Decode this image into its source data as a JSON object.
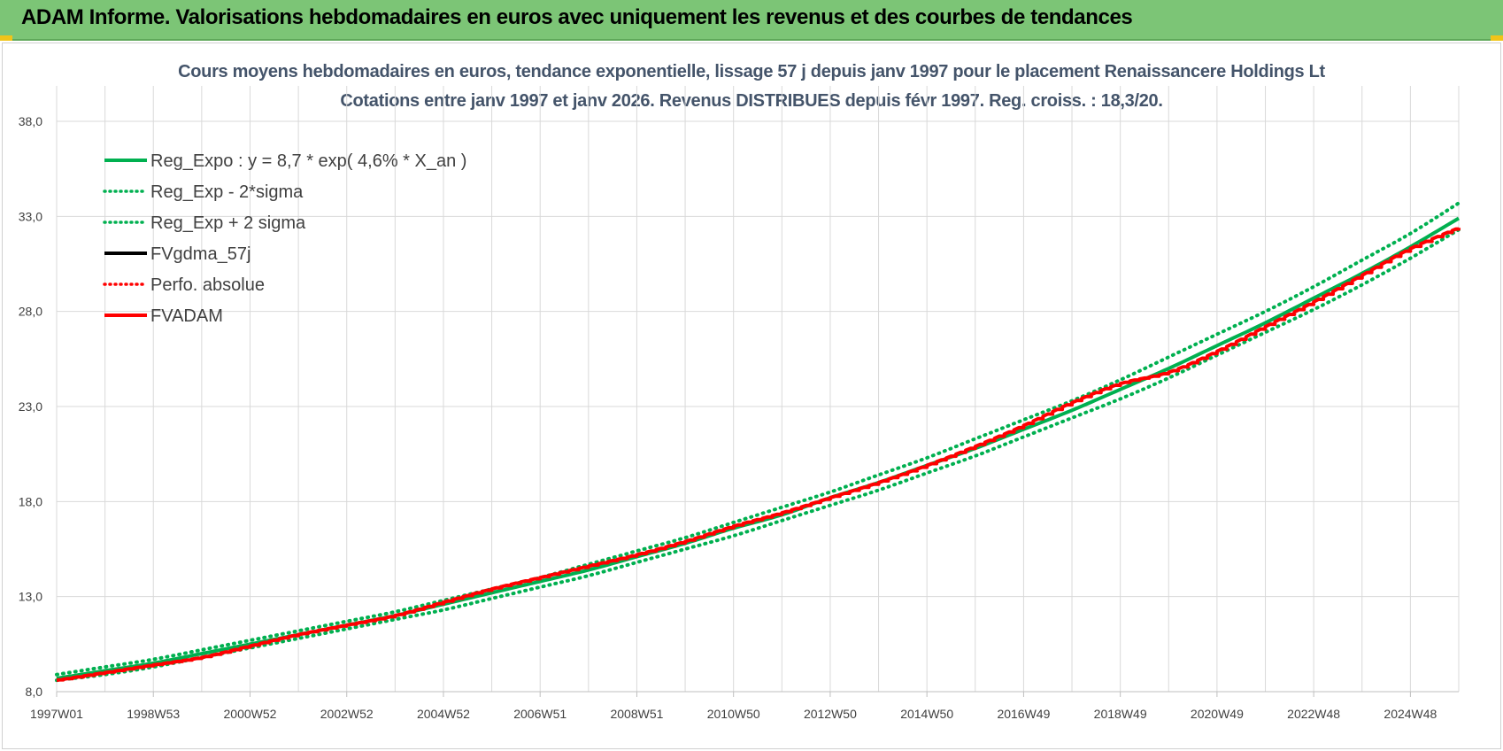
{
  "header": {
    "title": "ADAM Informe. Valorisations hebdomadaires en euros avec uniquement les revenus et des courbes de tendances"
  },
  "colors": {
    "header_bg": "#7cc576",
    "green": "#00b050",
    "red": "#ff0000",
    "black": "#000000",
    "grid": "#d9d9d9"
  },
  "chart_data": {
    "type": "line",
    "title": "Cours moyens hebdomadaires en euros, tendance exponentielle, lissage 57 j depuis janv 1997 pour le placement Renaissancere Holdings Lt",
    "subtitle": "Cotations entre janv 1997 et janv 2026. Revenus DISTRIBUES depuis févr 1997. Reg. croiss. : 18,3/20.",
    "xlabel": "",
    "ylabel": "",
    "ylim": [
      8.0,
      38.0
    ],
    "y_ticks": [
      "8,0",
      "13,0",
      "18,0",
      "23,0",
      "28,0",
      "33,0",
      "38,0"
    ],
    "x_tick_labels": [
      "1997W01",
      "1998W53",
      "2000W52",
      "2002W52",
      "2004W52",
      "2006W51",
      "2008W51",
      "2010W50",
      "2012W50",
      "2014W50",
      "2016W49",
      "2018W49",
      "2020W49",
      "2022W48",
      "2024W48"
    ],
    "grid": true,
    "legend_position": "top-left",
    "legend": [
      {
        "name": "Reg_Expo : y = 8,7 * exp( 4,6% *  X_an )",
        "color": "#00b050",
        "style": "solid"
      },
      {
        "name": "Reg_Exp - 2*sigma",
        "color": "#00b050",
        "style": "dotted"
      },
      {
        "name": "Reg_Exp + 2 sigma",
        "color": "#00b050",
        "style": "dotted"
      },
      {
        "name": "FVgdma_57j",
        "color": "#000000",
        "style": "solid"
      },
      {
        "name": "Perfo. absolue",
        "color": "#ff0000",
        "style": "dotted"
      },
      {
        "name": "FVADAM",
        "color": "#ff0000",
        "style": "solid"
      }
    ],
    "x_years": [
      1997,
      1998,
      1999,
      2000,
      2001,
      2002,
      2003,
      2004,
      2005,
      2006,
      2007,
      2008,
      2009,
      2010,
      2011,
      2012,
      2013,
      2014,
      2015,
      2016,
      2017,
      2018,
      2019,
      2020,
      2021,
      2022,
      2023,
      2024,
      2025,
      2026
    ],
    "series": [
      {
        "name": "Reg_Expo : y = 8,7 * exp( 4,6% *  X_an )",
        "values": [
          8.7,
          9.1,
          9.5,
          10.0,
          10.5,
          11.0,
          11.5,
          12.0,
          12.6,
          13.2,
          13.8,
          14.4,
          15.1,
          15.8,
          16.6,
          17.3,
          18.2,
          19.0,
          19.9,
          20.8,
          21.8,
          22.8,
          23.9,
          25.0,
          26.2,
          27.4,
          28.7,
          30.0,
          31.4,
          32.9
        ]
      },
      {
        "name": "Reg_Exp - 2*sigma",
        "values": [
          8.6,
          8.9,
          9.3,
          9.8,
          10.3,
          10.8,
          11.3,
          11.8,
          12.3,
          12.9,
          13.5,
          14.1,
          14.8,
          15.5,
          16.2,
          17.0,
          17.8,
          18.6,
          19.5,
          20.4,
          21.4,
          22.4,
          23.4,
          24.5,
          25.7,
          26.9,
          28.1,
          29.4,
          30.8,
          32.3
        ]
      },
      {
        "name": "Reg_Exp + 2 sigma",
        "values": [
          8.9,
          9.3,
          9.7,
          10.2,
          10.7,
          11.2,
          11.7,
          12.2,
          12.8,
          13.4,
          14.0,
          14.7,
          15.4,
          16.1,
          16.9,
          17.7,
          18.5,
          19.4,
          20.3,
          21.3,
          22.3,
          23.3,
          24.4,
          25.6,
          26.8,
          28.0,
          29.3,
          30.7,
          32.1,
          33.7
        ]
      },
      {
        "name": "FVADAM",
        "values": [
          8.6,
          9.0,
          9.4,
          9.8,
          10.4,
          11.0,
          11.5,
          12.0,
          12.7,
          13.4,
          14.0,
          14.6,
          15.2,
          15.9,
          16.7,
          17.4,
          18.2,
          19.0,
          19.9,
          20.9,
          22.0,
          23.2,
          24.2,
          24.8,
          25.9,
          27.2,
          28.5,
          29.9,
          31.3,
          32.4
        ]
      }
    ]
  }
}
